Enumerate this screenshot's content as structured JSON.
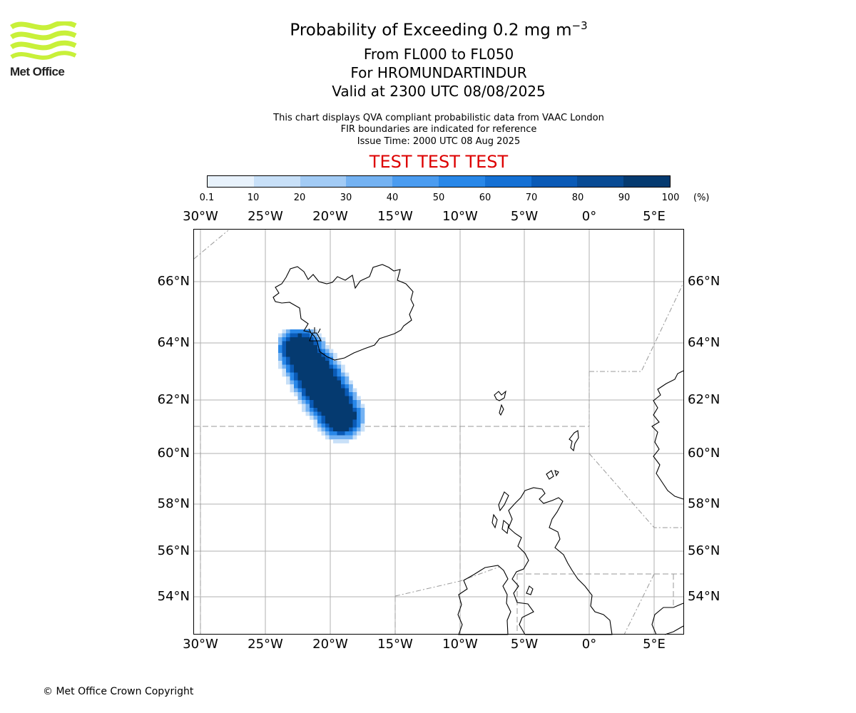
{
  "header": {
    "logo_text": "Met Office",
    "title": "Probability of Exceeding 0.2 mg m",
    "title_superscript": "−3",
    "level_range": "From FL000 to FL050",
    "volcano": "For HROMUNDARTINDUR",
    "valid_time": "Valid at 2300 UTC 08/08/2025",
    "note_1": "This chart displays QVA compliant probabilistic data from VAAC London",
    "note_2": "FIR boundaries are indicated for reference",
    "issue_time": "Issue Time: 2000 UTC 08 Aug 2025",
    "test_banner": "TEST TEST TEST"
  },
  "colorbar": {
    "tick_labels": [
      "0.1",
      "10",
      "20",
      "30",
      "40",
      "50",
      "60",
      "70",
      "80",
      "90",
      "100"
    ],
    "unit": "(%)",
    "colors": [
      "#e8f2fc",
      "#c8e0f8",
      "#a2cbf5",
      "#74b2f2",
      "#4b9cf0",
      "#2887e8",
      "#1470d4",
      "#0a5ab6",
      "#084b94",
      "#053a70"
    ]
  },
  "map": {
    "lon_labels": [
      "30°W",
      "25°W",
      "20°W",
      "15°W",
      "10°W",
      "5°W",
      "0°",
      "5°E"
    ],
    "lat_labels": [
      "66°N",
      "64°N",
      "62°N",
      "60°N",
      "58°N",
      "56°N",
      "54°N"
    ],
    "frame_color": "#000000",
    "grid_color": "#b0b0b0",
    "fir_color": "#999999"
  },
  "footer": {
    "copyright": "© Met Office Crown Copyright"
  }
}
